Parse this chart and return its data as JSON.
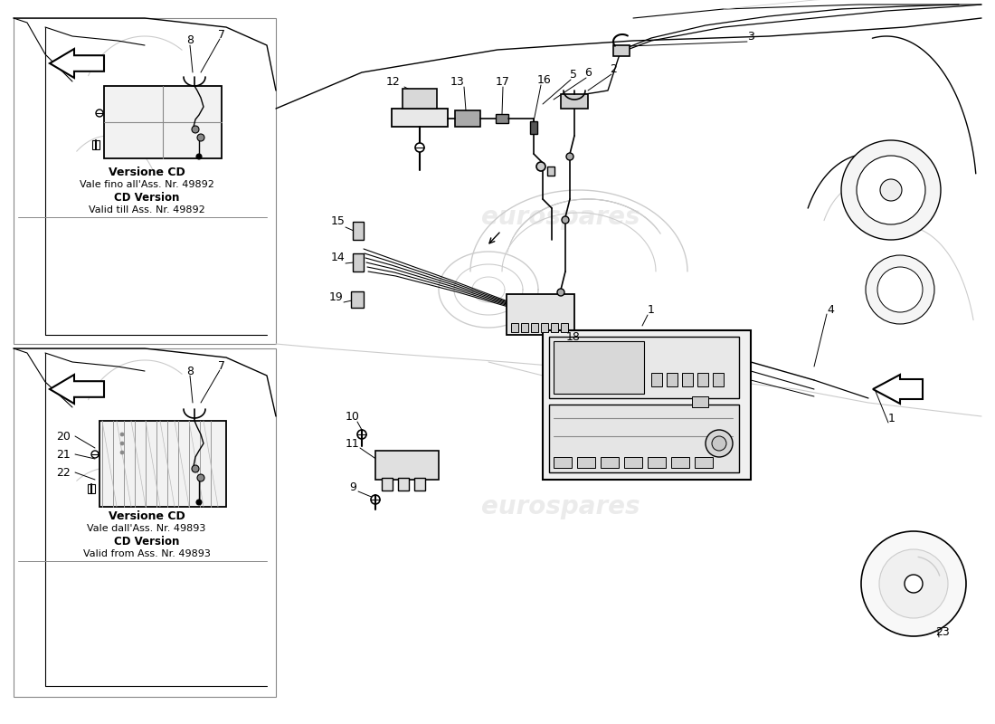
{
  "background_color": "#ffffff",
  "line_color": "#000000",
  "gray_color": "#888888",
  "light_gray": "#cccccc",
  "watermark_color": "#d8d8d8",
  "watermark_text": "eurospares",
  "label_top_version_it": "Versione CD",
  "label_top_note_it": "Vale fino all'Ass. Nr. 49892",
  "label_top_version_en": "CD Version",
  "label_top_note_en": "Valid till Ass. Nr. 49892",
  "label_bot_version_it": "Versione CD",
  "label_bot_note_it": "Vale dall'Ass. Nr. 49893",
  "label_bot_version_en": "CD Version",
  "label_bot_note_en": "Valid from Ass. Nr. 49893"
}
